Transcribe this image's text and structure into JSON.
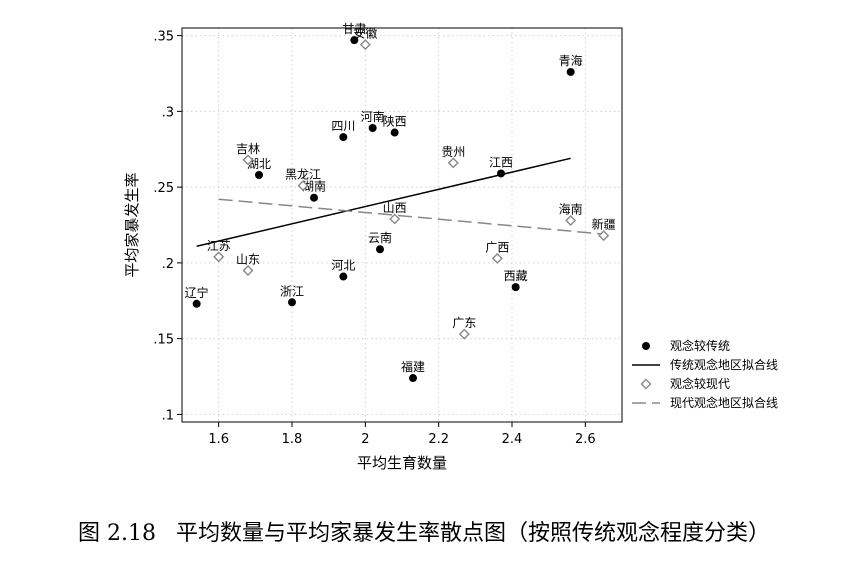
{
  "chart_data": {
    "type": "scatter",
    "xlabel": "平均生育数量",
    "ylabel": "平均家暴发生率",
    "xlim": [
      1.5,
      2.7
    ],
    "ylim": [
      0.095,
      0.355
    ],
    "x_ticks": [
      1.6,
      1.8,
      2.0,
      2.2,
      2.4,
      2.6
    ],
    "x_tick_labels": [
      "1.6",
      "1.8",
      "2",
      "2.2",
      "2.4",
      "2.6"
    ],
    "y_ticks": [
      0.1,
      0.15,
      0.2,
      0.25,
      0.3,
      0.35
    ],
    "y_tick_labels": [
      ".1",
      ".15",
      ".2",
      ".25",
      ".3",
      ".35"
    ],
    "grid": true,
    "legend_position": "right",
    "series": [
      {
        "name": "观念较传统",
        "marker": "filled-circle",
        "color": "#000000",
        "points": [
          {
            "label": "甘肃",
            "x": 1.97,
            "y": 0.347
          },
          {
            "label": "青海",
            "x": 2.56,
            "y": 0.326
          },
          {
            "label": "河南",
            "x": 2.02,
            "y": 0.289
          },
          {
            "label": "四川",
            "x": 1.94,
            "y": 0.283
          },
          {
            "label": "陕西",
            "x": 2.08,
            "y": 0.286
          },
          {
            "label": "湖北",
            "x": 1.71,
            "y": 0.258
          },
          {
            "label": "江西",
            "x": 2.37,
            "y": 0.259
          },
          {
            "label": "湖南",
            "x": 1.86,
            "y": 0.243
          },
          {
            "label": "云南",
            "x": 2.04,
            "y": 0.209
          },
          {
            "label": "河北",
            "x": 1.94,
            "y": 0.191
          },
          {
            "label": "西藏",
            "x": 2.41,
            "y": 0.184
          },
          {
            "label": "辽宁",
            "x": 1.54,
            "y": 0.173
          },
          {
            "label": "浙江",
            "x": 1.8,
            "y": 0.174
          },
          {
            "label": "福建",
            "x": 2.13,
            "y": 0.124
          }
        ]
      },
      {
        "name": "传统观念地区拟合线",
        "type": "line",
        "style": "solid",
        "color": "#000000",
        "x": [
          1.54,
          2.56
        ],
        "y": [
          0.211,
          0.269
        ]
      },
      {
        "name": "观念较现代",
        "marker": "hollow-diamond",
        "color": "#888888",
        "points": [
          {
            "label": "安徽",
            "x": 2.0,
            "y": 0.344
          },
          {
            "label": "吉林",
            "x": 1.68,
            "y": 0.268
          },
          {
            "label": "黑龙江",
            "x": 1.83,
            "y": 0.251
          },
          {
            "label": "贵州",
            "x": 2.24,
            "y": 0.266
          },
          {
            "label": "山西",
            "x": 2.08,
            "y": 0.229
          },
          {
            "label": "海南",
            "x": 2.56,
            "y": 0.228
          },
          {
            "label": "新疆",
            "x": 2.65,
            "y": 0.218
          },
          {
            "label": "江苏",
            "x": 1.6,
            "y": 0.204
          },
          {
            "label": "山东",
            "x": 1.68,
            "y": 0.195
          },
          {
            "label": "广西",
            "x": 2.36,
            "y": 0.203
          },
          {
            "label": "广东",
            "x": 2.27,
            "y": 0.153
          }
        ]
      },
      {
        "name": "现代观念地区拟合线",
        "type": "line",
        "style": "dashed",
        "color": "#888888",
        "x": [
          1.6,
          2.65
        ],
        "y": [
          0.242,
          0.219
        ]
      }
    ]
  },
  "caption": {
    "number": "图 2.18",
    "text": "平均数量与平均家暴发生率散点图（按照传统观念程度分类）"
  }
}
